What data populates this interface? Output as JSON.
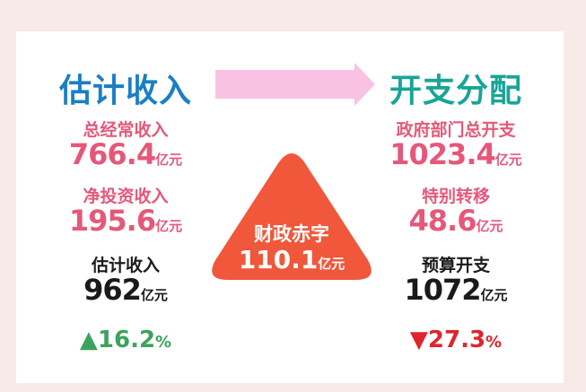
{
  "left": {
    "title": "估计收入",
    "items": [
      {
        "label": "总经常收入",
        "value": 766.4,
        "unit": "亿元"
      },
      {
        "label": "净投资收入",
        "value": 195.6,
        "unit": "亿元"
      },
      {
        "label": "估计收入",
        "value": 962,
        "unit": "亿元"
      }
    ],
    "change": {
      "value": 16.2,
      "unit": "%"
    }
  },
  "right": {
    "title": "开支分配",
    "items": [
      {
        "label": "政府部门总开支",
        "value": 1023.4,
        "unit": "亿元"
      },
      {
        "label": "特别转移",
        "value": 48.6,
        "unit": "亿元"
      },
      {
        "label": "预算开支",
        "value": 1072,
        "unit": "亿元"
      }
    ],
    "change": {
      "value": 27.3,
      "unit": "%"
    }
  },
  "deficit": {
    "label": "财政赤字",
    "value": 110.1,
    "unit": "亿元"
  }
}
